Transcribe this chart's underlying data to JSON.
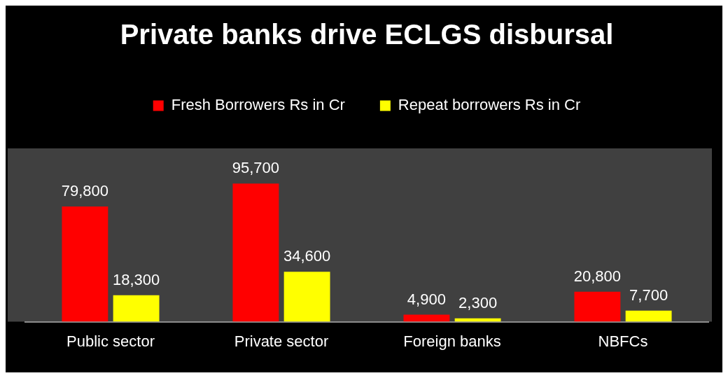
{
  "chart_data": {
    "type": "bar",
    "title": "Private banks drive ECLGS disbursal",
    "categories": [
      "Public sector",
      "Private sector",
      "Foreign banks",
      "NBFCs"
    ],
    "series": [
      {
        "name": "Fresh Borrowers Rs in Cr",
        "color": "#ff0000",
        "values": [
          79800,
          95700,
          4900,
          20800
        ],
        "value_labels": [
          "79,800",
          "95,700",
          "4,900",
          "20,800"
        ]
      },
      {
        "name": "Repeat borrowers Rs in Cr",
        "color": "#ffff00",
        "values": [
          18300,
          34600,
          2300,
          7700
        ],
        "value_labels": [
          "18,300",
          "34,600",
          "2,300",
          "7,700"
        ]
      }
    ],
    "legend": "top",
    "grid": false
  }
}
